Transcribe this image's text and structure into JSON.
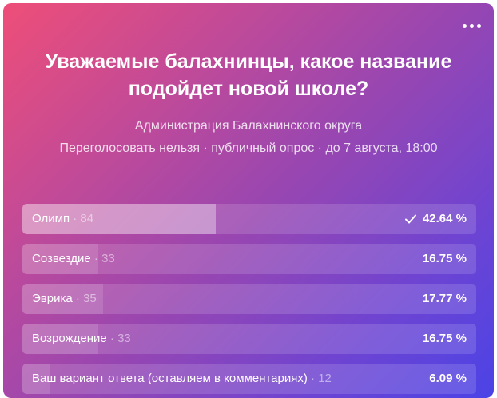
{
  "poll": {
    "title": "Уважаемые балахнинцы, какое название подойдет новой школе?",
    "author": "Администрация Балахнинского округа",
    "meta": "Переголосовать нельзя · публичный опрос · до 7 августа, 18:00",
    "separator": "·",
    "options": [
      {
        "label": "Олимп",
        "count": "84",
        "percent": "42.64 %",
        "fraction": 0.4264,
        "selected": true
      },
      {
        "label": "Созвездие",
        "count": "33",
        "percent": "16.75 %",
        "fraction": 0.1675,
        "selected": false
      },
      {
        "label": "Эврика",
        "count": "35",
        "percent": "17.77 %",
        "fraction": 0.1777,
        "selected": false
      },
      {
        "label": "Возрождение",
        "count": "33",
        "percent": "16.75 %",
        "fraction": 0.1675,
        "selected": false
      },
      {
        "label": "Ваш вариант ответа (оставляем в комментариях)",
        "count": "12",
        "percent": "6.09 %",
        "fraction": 0.0609,
        "selected": false
      }
    ]
  },
  "icons": {
    "more": "more-horizontal-icon",
    "check": "check-icon"
  },
  "colors": {
    "gradient_start": "#ee4e78",
    "gradient_end": "#4b43e6",
    "text": "#ffffff"
  }
}
